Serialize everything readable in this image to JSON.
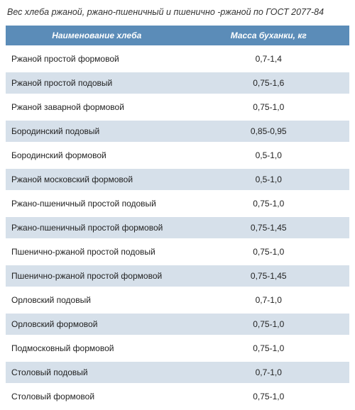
{
  "title": "Вес хлеба ржаной, ржано-пшеничный и пшенично -ржаной по ГОСТ 2077-84",
  "table": {
    "columns": [
      "Наименование хлеба",
      "Масса буханки, кг"
    ],
    "header_bg": "#5b8cb8",
    "header_fg": "#ffffff",
    "row_alt_bg": "#d6e0ea",
    "row_bg": "#ffffff",
    "font_size": 12,
    "rows": [
      {
        "name": "Ржаной простой формовой",
        "mass": "0,7-1,4"
      },
      {
        "name": "Ржаной простой подовый",
        "mass": "0,75-1,6"
      },
      {
        "name": "Ржаной заварной формовой",
        "mass": "0,75-1,0"
      },
      {
        "name": "Бородинский подовый",
        "mass": "0,85-0,95"
      },
      {
        "name": "Бородинский формовой",
        "mass": "0,5-1,0"
      },
      {
        "name": "Ржаной московский формовой",
        "mass": "0,5-1,0"
      },
      {
        "name": "Ржано-пшеничный простой подовый",
        "mass": "0,75-1,0"
      },
      {
        "name": "Ржано-пшеничный простой формовой",
        "mass": "0,75-1,45"
      },
      {
        "name": "Пшенично-ржаной простой подовый",
        "mass": "0,75-1,0"
      },
      {
        "name": "Пшенично-ржаной простой формовой",
        "mass": "0,75-1,45"
      },
      {
        "name": "Орловский подовый",
        "mass": "0,7-1,0"
      },
      {
        "name": "Орловский формовой",
        "mass": "0,75-1,0"
      },
      {
        "name": "Подмосковный формовой",
        "mass": "0,75-1,0"
      },
      {
        "name": "Столовый подовый",
        "mass": "0,7-1,0"
      },
      {
        "name": "Столовый формовой",
        "mass": "0,75-1,0"
      }
    ]
  }
}
